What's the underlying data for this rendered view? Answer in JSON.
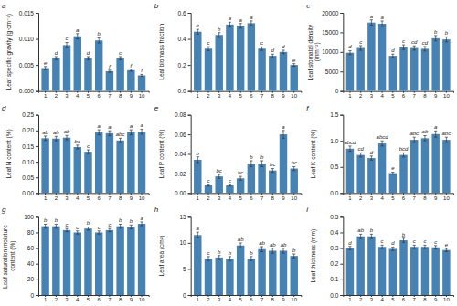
{
  "chart_data": [
    {
      "type": "bar",
      "title": "a",
      "ylabel": "Leaf specific gravity (g·cm⁻²)",
      "categories": [
        "1",
        "2",
        "3",
        "4",
        "5",
        "6",
        "7",
        "8",
        "9",
        "10"
      ],
      "values": [
        0.0044,
        0.0063,
        0.0088,
        0.0105,
        0.0063,
        0.0097,
        0.0038,
        0.0063,
        0.004,
        0.003
      ],
      "errors": [
        0.0003,
        0.0003,
        0.0005,
        0.0005,
        0.0003,
        0.0005,
        0.0002,
        0.0003,
        0.0002,
        0.0002
      ],
      "annotations": [
        "e",
        "d",
        "c",
        "a",
        "d",
        "b",
        "f",
        "c",
        "f",
        "f"
      ],
      "ylim": [
        0,
        0.015
      ],
      "yticks": [
        {
          "value": 0,
          "label": "0.000"
        },
        0.005,
        {
          "value": 0.01,
          "label": "0.010"
        },
        0.015
      ]
    },
    {
      "type": "bar",
      "title": "b",
      "ylabel": "Leaf biomass fraction",
      "categories": [
        "1",
        "2",
        "3",
        "4",
        "5",
        "6",
        "7",
        "8",
        "9",
        "10"
      ],
      "values": [
        0.455,
        0.325,
        0.43,
        0.51,
        0.5,
        0.52,
        0.325,
        0.27,
        0.3,
        0.2
      ],
      "errors": [
        0.018,
        0.015,
        0.018,
        0.018,
        0.018,
        0.018,
        0.013,
        0.013,
        0.013,
        0.01
      ],
      "annotations": [
        "b",
        "c",
        "b",
        "a",
        "a",
        "a",
        "c",
        "d",
        "d",
        "e"
      ],
      "ylim": [
        0.0,
        0.6
      ],
      "yticks": [
        {
          "value": 0,
          "label": "0.0"
        },
        0.2,
        0.4,
        0.6
      ]
    },
    {
      "type": "bar",
      "title": "c",
      "ylabel": "Leaf stomatal density (mm⁻²)",
      "categories": [
        "1",
        "2",
        "3",
        "4",
        "5",
        "6",
        "7",
        "8",
        "9",
        "10"
      ],
      "values": [
        9800,
        11000,
        17500,
        17200,
        9000,
        11200,
        11000,
        10800,
        13500,
        13200
      ],
      "errors": [
        500,
        600,
        700,
        700,
        450,
        600,
        550,
        580,
        680,
        650
      ],
      "annotations": [
        "d",
        "c",
        "a",
        "a",
        "d",
        "c",
        "cd",
        "cd",
        "b",
        "b"
      ],
      "ylim": [
        0,
        20000
      ],
      "yticks": [
        0,
        5000,
        10000,
        15000,
        20000
      ]
    },
    {
      "type": "bar",
      "title": "d",
      "ylabel": "Leaf N content (%)",
      "categories": [
        "1",
        "2",
        "3",
        "4",
        "5",
        "6",
        "7",
        "8",
        "9",
        "10"
      ],
      "values": [
        0.175,
        0.174,
        0.177,
        0.147,
        0.132,
        0.194,
        0.191,
        0.168,
        0.194,
        0.196
      ],
      "errors": [
        0.007,
        0.007,
        0.007,
        0.006,
        0.006,
        0.008,
        0.008,
        0.007,
        0.008,
        0.008
      ],
      "annotations": [
        "ab",
        "ab",
        "ab",
        "bc",
        "c",
        "a",
        "a",
        "abc",
        "a",
        "a"
      ],
      "ylim": [
        0.0,
        0.25
      ],
      "yticks": [
        {
          "value": 0,
          "label": "0.00"
        },
        0.05,
        {
          "value": 0.1,
          "label": "0.10"
        },
        0.15,
        {
          "value": 0.2,
          "label": "0.20"
        },
        0.25
      ]
    },
    {
      "type": "bar",
      "title": "e",
      "ylabel": "Leaf P content (%)",
      "categories": [
        "1",
        "2",
        "3",
        "4",
        "5",
        "6",
        "7",
        "8",
        "9",
        "10"
      ],
      "values": [
        0.034,
        0.008,
        0.017,
        0.008,
        0.015,
        0.03,
        0.03,
        0.023,
        0.06,
        0.025
      ],
      "errors": [
        0.003,
        0.001,
        0.002,
        0.001,
        0.002,
        0.003,
        0.003,
        0.002,
        0.004,
        0.002
      ],
      "annotations": [
        "b",
        "c",
        "bc",
        "c",
        "bc",
        "b",
        "b",
        "bc",
        "a",
        "bc"
      ],
      "ylim": [
        0.0,
        0.08
      ],
      "yticks": [
        {
          "value": 0,
          "label": "0.00"
        },
        0.02,
        0.04,
        0.06,
        0.08
      ]
    },
    {
      "type": "bar",
      "title": "f",
      "ylabel": "Leaf K content (%)",
      "categories": [
        "1",
        "2",
        "3",
        "4",
        "5",
        "6",
        "7",
        "8",
        "9",
        "10"
      ],
      "values": [
        0.85,
        0.73,
        0.67,
        0.95,
        0.38,
        0.73,
        1.02,
        1.05,
        1.13,
        1.02
      ],
      "errors": [
        0.05,
        0.04,
        0.04,
        0.05,
        0.02,
        0.04,
        0.05,
        0.05,
        0.06,
        0.05
      ],
      "annotations": [
        "abcd",
        "cd",
        "d",
        "abcd",
        "e",
        "bcd",
        "abc",
        "ab",
        "a",
        "abc"
      ],
      "ylim": [
        0.0,
        1.5
      ],
      "yticks": [
        {
          "value": 0,
          "label": "0.0"
        },
        0.5,
        {
          "value": 1,
          "label": "1.0"
        },
        1.5
      ]
    },
    {
      "type": "bar",
      "title": "g",
      "ylabel": "Leaf saturation moisture\ncontent (%)",
      "categories": [
        "1",
        "2",
        "3",
        "4",
        "5",
        "6",
        "7",
        "8",
        "9",
        "10"
      ],
      "values": [
        88,
        88,
        83,
        80,
        85,
        80,
        83,
        88,
        87,
        91
      ],
      "errors": [
        2.5,
        2.5,
        2.0,
        2.0,
        2.0,
        2.0,
        2.0,
        2.5,
        2.5,
        2.5
      ],
      "annotations": [
        "b",
        "b",
        "c",
        "c",
        "b",
        "c",
        "c",
        "b",
        "b",
        "a"
      ],
      "ylim": [
        0,
        100
      ],
      "yticks": [
        0,
        20,
        40,
        60,
        80,
        100
      ]
    },
    {
      "type": "bar",
      "title": "h",
      "ylabel": "Leaf area (cm²)",
      "categories": [
        "1",
        "2",
        "3",
        "4",
        "5",
        "6",
        "7",
        "8",
        "9",
        "10"
      ],
      "values": [
        11.5,
        7.0,
        7.2,
        7.0,
        9.5,
        7.0,
        8.8,
        8.5,
        8.5,
        7.5
      ],
      "errors": [
        0.55,
        0.38,
        0.38,
        0.38,
        0.48,
        0.38,
        0.48,
        0.48,
        0.48,
        0.38
      ],
      "annotations": [
        "a",
        "c",
        "b",
        "b",
        "ab",
        "b",
        "ab",
        "ab",
        "ab",
        "b"
      ],
      "ylim": [
        0,
        15
      ],
      "yticks": [
        0,
        5,
        10,
        15
      ]
    },
    {
      "type": "bar",
      "title": "i",
      "ylabel": "Leaf thickness (mm)",
      "categories": [
        "1",
        "2",
        "3",
        "4",
        "5",
        "6",
        "7",
        "8",
        "9",
        "10"
      ],
      "values": [
        0.3,
        0.375,
        0.375,
        0.308,
        0.295,
        0.35,
        0.308,
        0.308,
        0.305,
        0.288
      ],
      "errors": [
        0.011,
        0.014,
        0.014,
        0.011,
        0.011,
        0.013,
        0.011,
        0.011,
        0.011,
        0.01
      ],
      "annotations": [
        "d",
        "ab",
        "b",
        "c",
        "d",
        "b",
        "c",
        "c",
        "c",
        "e"
      ],
      "ylim": [
        0.0,
        0.5
      ],
      "yticks": [
        {
          "value": 0,
          "label": "0.0"
        },
        0.1,
        0.2,
        0.3,
        0.4,
        0.5
      ]
    }
  ]
}
